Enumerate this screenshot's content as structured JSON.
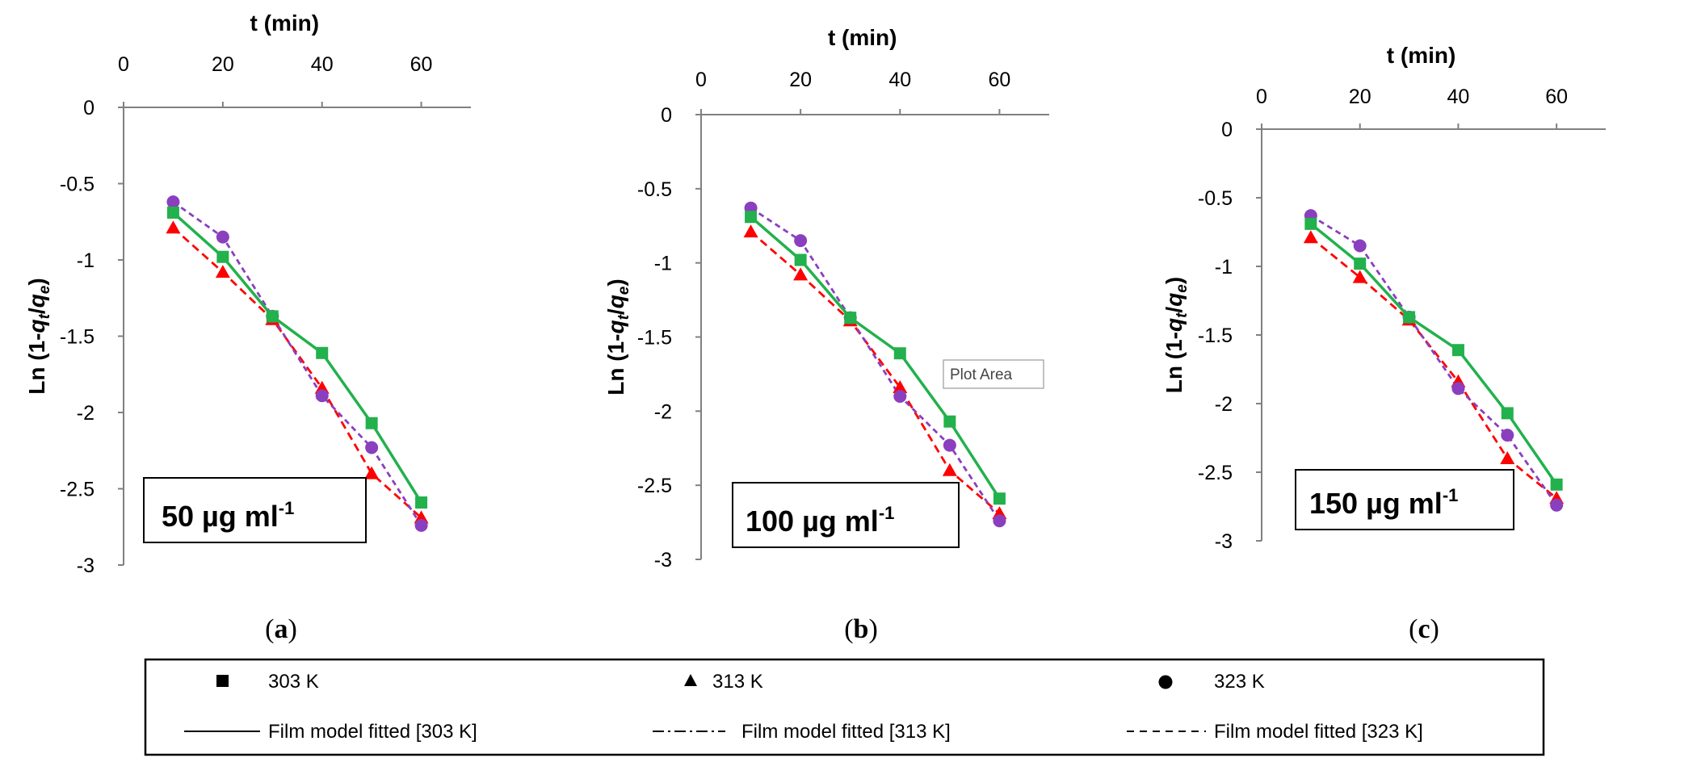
{
  "chart_data": [
    {
      "type": "line",
      "panel_label": "a",
      "concentration": "50 µg ml",
      "concentration_sup": "-1",
      "xlabel": "t (min)",
      "ylabel_prefix": "Ln (1-",
      "ylabel_q1": "q",
      "ylabel_sub1": "t",
      "ylabel_slash": "/",
      "ylabel_q2": "q",
      "ylabel_sub2": "e",
      "ylabel_suffix": ")",
      "xlim": [
        0,
        70
      ],
      "ylim": [
        -3,
        0
      ],
      "x_ticks": [
        "0",
        "20",
        "40",
        "60"
      ],
      "y_ticks": [
        "0",
        "-0.5",
        "-1",
        "-1.5",
        "-2",
        "-2.5",
        "-3"
      ],
      "x_axis_position": "top",
      "grid": false,
      "x": [
        10,
        20,
        30,
        40,
        50,
        60
      ],
      "series": [
        {
          "values": [
            -0.69,
            -0.98,
            -1.37,
            -1.61,
            -2.07,
            -2.59
          ],
          "color": "#22b14c",
          "marker": "square",
          "line": "solid"
        },
        {
          "values": [
            -0.79,
            -1.08,
            -1.39,
            -1.84,
            -2.4,
            -2.69
          ],
          "color": "#ff0000",
          "marker": "triangle",
          "line": "dashed"
        },
        {
          "values": [
            -0.62,
            -0.85,
            -1.37,
            -1.89,
            -2.23,
            -2.74
          ],
          "color": "#8a3fbf",
          "marker": "circle",
          "line": "dashed"
        }
      ]
    },
    {
      "type": "line",
      "panel_label": "b",
      "concentration": "100 µg ml",
      "concentration_sup": "-1",
      "xlabel": "t (min)",
      "ylabel_prefix": "Ln (1-",
      "ylabel_q1": "q",
      "ylabel_sub1": "t",
      "ylabel_slash": "/",
      "ylabel_q2": "q",
      "ylabel_sub2": "e",
      "ylabel_suffix": ")",
      "xlim": [
        0,
        70
      ],
      "ylim": [
        -3,
        0
      ],
      "x_ticks": [
        "0",
        "20",
        "40",
        "60"
      ],
      "y_ticks": [
        "0",
        "-0.5",
        "-1",
        "-1.5",
        "-2",
        "-2.5",
        "-3"
      ],
      "x_axis_position": "top",
      "grid": false,
      "tooltip": "Plot Area",
      "x": [
        10,
        20,
        30,
        40,
        50,
        60
      ],
      "series": [
        {
          "values": [
            -0.69,
            -0.98,
            -1.37,
            -1.61,
            -2.07,
            -2.59
          ],
          "color": "#22b14c",
          "marker": "square",
          "line": "solid"
        },
        {
          "values": [
            -0.79,
            -1.08,
            -1.39,
            -1.84,
            -2.4,
            -2.69
          ],
          "color": "#ff0000",
          "marker": "triangle",
          "line": "dashed"
        },
        {
          "values": [
            -0.63,
            -0.85,
            -1.37,
            -1.9,
            -2.23,
            -2.74
          ],
          "color": "#8a3fbf",
          "marker": "circle",
          "line": "dashed"
        }
      ]
    },
    {
      "type": "line",
      "panel_label": "c",
      "concentration": "150 µg ml",
      "concentration_sup": "-1",
      "xlabel": "t (min)",
      "ylabel_prefix": "Ln (1-",
      "ylabel_q1": "q",
      "ylabel_sub1": "t",
      "ylabel_slash": "/",
      "ylabel_q2": "q",
      "ylabel_sub2": "e",
      "ylabel_suffix": ")",
      "xlim": [
        0,
        70
      ],
      "ylim": [
        -3,
        0
      ],
      "x_ticks": [
        "0",
        "20",
        "40",
        "60"
      ],
      "y_ticks": [
        "0",
        "-0.5",
        "-1",
        "-1.5",
        "-2",
        "-2.5",
        "-3"
      ],
      "x_axis_position": "top",
      "grid": false,
      "x": [
        10,
        20,
        30,
        40,
        50,
        60
      ],
      "series": [
        {
          "values": [
            -0.69,
            -0.98,
            -1.37,
            -1.61,
            -2.07,
            -2.59
          ],
          "color": "#22b14c",
          "marker": "square",
          "line": "solid"
        },
        {
          "values": [
            -0.79,
            -1.08,
            -1.39,
            -1.84,
            -2.4,
            -2.69
          ],
          "color": "#ff0000",
          "marker": "triangle",
          "line": "dashed"
        },
        {
          "values": [
            -0.63,
            -0.85,
            -1.37,
            -1.89,
            -2.23,
            -2.74
          ],
          "color": "#8a3fbf",
          "marker": "circle",
          "line": "dashed"
        }
      ]
    }
  ],
  "legend": {
    "items": [
      {
        "symbol": "square",
        "label": "303 K"
      },
      {
        "symbol": "triangle",
        "label": "313 K"
      },
      {
        "symbol": "circle",
        "label": "323 K"
      },
      {
        "line": "solid",
        "label": "Film model fitted [303 K]"
      },
      {
        "line": "dashdot",
        "label": "Film model fitted [313 K]"
      },
      {
        "line": "dashed",
        "label": "Film model fitted [323 K]"
      }
    ]
  }
}
